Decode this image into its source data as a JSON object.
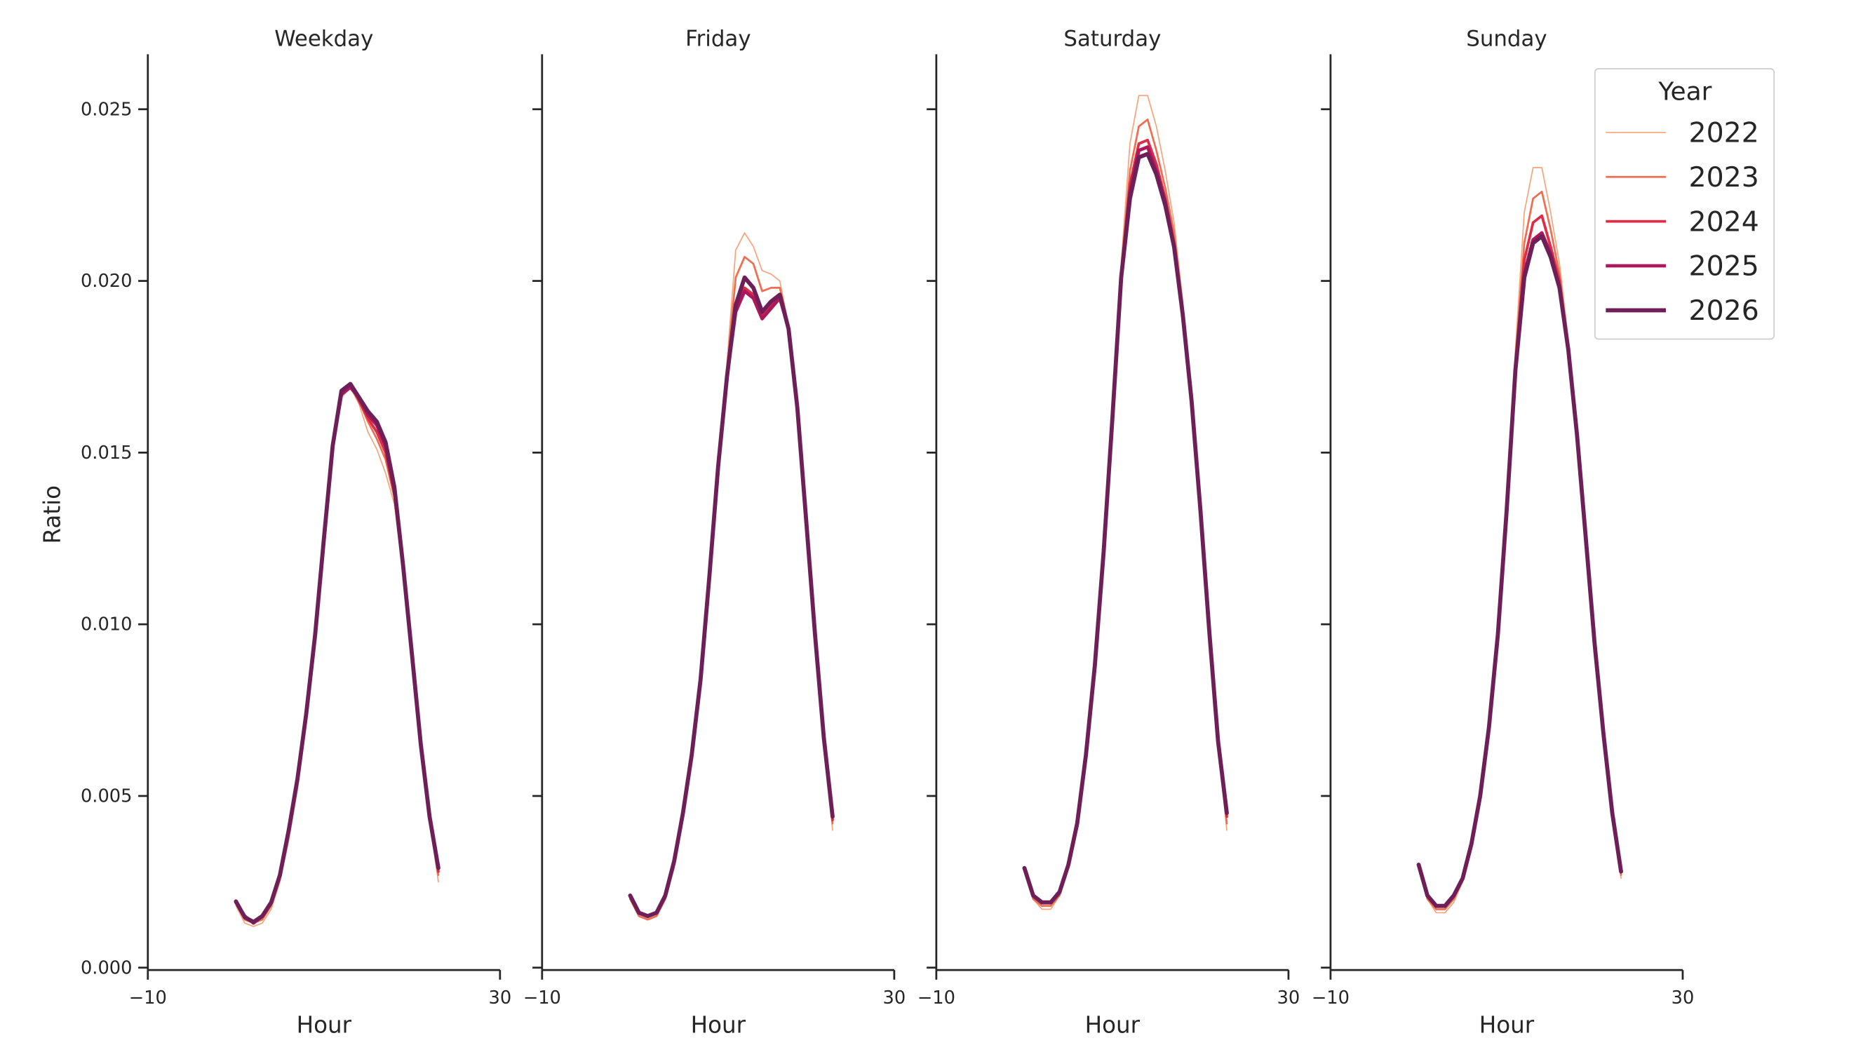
{
  "figure": {
    "ylabel": "Ratio",
    "xlabel": "Hour",
    "legend": {
      "title": "Year",
      "placement": "top-right",
      "entries": [
        "2022",
        "2023",
        "2024",
        "2025",
        "2026"
      ]
    },
    "colors": {
      "2022": "#f6a47c",
      "2023": "#f06e4f",
      "2024": "#dd2c45",
      "2025": "#ae1759",
      "2026": "#6e1f57"
    },
    "line_widths": {
      "2022": 1,
      "2023": 1.6,
      "2024": 2.2,
      "2025": 2.8,
      "2026": 3.4
    }
  },
  "chart_data": [
    {
      "type": "line",
      "title": "Weekday",
      "xlabel": "Hour",
      "ylabel": "Ratio",
      "xlim": [
        -10,
        30
      ],
      "ylim": [
        0,
        0.0266
      ],
      "xticks": [
        "−10",
        "30"
      ],
      "yticks": [
        "0.000",
        "0.005",
        "0.010",
        "0.015",
        "0.020",
        "0.025"
      ],
      "grid": false,
      "x": [
        0,
        1,
        2,
        3,
        4,
        5,
        6,
        7,
        8,
        9,
        10,
        11,
        12,
        13,
        14,
        15,
        16,
        17,
        18,
        19,
        20,
        21,
        22,
        23
      ],
      "series": [
        {
          "name": "2022",
          "values": [
            0.0018,
            0.0013,
            0.0012,
            0.0013,
            0.0017,
            0.0025,
            0.0037,
            0.0052,
            0.0071,
            0.0095,
            0.0123,
            0.015,
            0.0166,
            0.0169,
            0.0164,
            0.0156,
            0.0151,
            0.0144,
            0.0135,
            0.0115,
            0.009,
            0.0064,
            0.0043,
            0.0025
          ]
        },
        {
          "name": "2023",
          "values": [
            0.0019,
            0.0014,
            0.0013,
            0.0014,
            0.0018,
            0.0026,
            0.0039,
            0.0054,
            0.0073,
            0.0096,
            0.0124,
            0.0151,
            0.0167,
            0.0169,
            0.0165,
            0.0159,
            0.0154,
            0.0148,
            0.0137,
            0.0116,
            0.0091,
            0.0065,
            0.0044,
            0.0027
          ]
        },
        {
          "name": "2024",
          "values": [
            0.0019,
            0.0015,
            0.0013,
            0.0015,
            0.0019,
            0.0027,
            0.004,
            0.0055,
            0.0074,
            0.0097,
            0.0125,
            0.0152,
            0.0168,
            0.017,
            0.0165,
            0.016,
            0.0156,
            0.015,
            0.0138,
            0.0117,
            0.0091,
            0.0065,
            0.0044,
            0.0028
          ]
        },
        {
          "name": "2025",
          "values": [
            0.0019,
            0.0015,
            0.0013,
            0.0015,
            0.0019,
            0.0027,
            0.004,
            0.0055,
            0.0074,
            0.0097,
            0.0125,
            0.0152,
            0.0167,
            0.0169,
            0.0166,
            0.0161,
            0.0158,
            0.0152,
            0.0139,
            0.0117,
            0.0091,
            0.0065,
            0.0044,
            0.0029
          ]
        },
        {
          "name": "2026",
          "values": [
            0.00193,
            0.00147,
            0.00133,
            0.0015,
            0.0019,
            0.0027,
            0.004,
            0.0055,
            0.0074,
            0.0097,
            0.0125,
            0.0152,
            0.0168,
            0.017,
            0.0166,
            0.0162,
            0.0159,
            0.0153,
            0.014,
            0.0117,
            0.0091,
            0.0065,
            0.0044,
            0.0029
          ]
        }
      ]
    },
    {
      "type": "line",
      "title": "Friday",
      "xlabel": "Hour",
      "xlim": [
        -10,
        30
      ],
      "ylim": [
        0,
        0.0266
      ],
      "xticks": [
        "−10",
        "30"
      ],
      "grid": false,
      "x": [
        0,
        1,
        2,
        3,
        4,
        5,
        6,
        7,
        8,
        9,
        10,
        11,
        12,
        13,
        14,
        15,
        16,
        17,
        18,
        19,
        20,
        21,
        22,
        23
      ],
      "series": [
        {
          "name": "2022",
          "values": [
            0.002,
            0.0015,
            0.0014,
            0.0015,
            0.002,
            0.0029,
            0.0043,
            0.006,
            0.0083,
            0.0114,
            0.0148,
            0.0176,
            0.0209,
            0.0214,
            0.021,
            0.0203,
            0.0202,
            0.02,
            0.0187,
            0.0163,
            0.013,
            0.0097,
            0.0066,
            0.004
          ]
        },
        {
          "name": "2023",
          "values": [
            0.002,
            0.0015,
            0.0014,
            0.0015,
            0.002,
            0.003,
            0.0044,
            0.0061,
            0.0084,
            0.0114,
            0.0147,
            0.0174,
            0.0201,
            0.0207,
            0.0205,
            0.0197,
            0.0198,
            0.0198,
            0.0187,
            0.0163,
            0.013,
            0.0097,
            0.0066,
            0.0042
          ]
        },
        {
          "name": "2024",
          "values": [
            0.0021,
            0.0016,
            0.0015,
            0.0016,
            0.0021,
            0.0031,
            0.0045,
            0.0062,
            0.0084,
            0.0114,
            0.0146,
            0.0172,
            0.0192,
            0.0198,
            0.0196,
            0.019,
            0.0193,
            0.0196,
            0.0186,
            0.0163,
            0.013,
            0.0097,
            0.0067,
            0.0043
          ]
        },
        {
          "name": "2025",
          "values": [
            0.0021,
            0.0016,
            0.0015,
            0.0016,
            0.0021,
            0.0031,
            0.0045,
            0.0062,
            0.0084,
            0.0114,
            0.0146,
            0.0172,
            0.0191,
            0.0197,
            0.0195,
            0.0189,
            0.0192,
            0.0195,
            0.0186,
            0.0163,
            0.013,
            0.0097,
            0.0067,
            0.0044
          ]
        },
        {
          "name": "2026",
          "values": [
            0.0021,
            0.0016,
            0.0015,
            0.0016,
            0.0021,
            0.0031,
            0.0045,
            0.0062,
            0.0084,
            0.0114,
            0.0146,
            0.0172,
            0.0193,
            0.0201,
            0.0198,
            0.0191,
            0.0194,
            0.0196,
            0.0186,
            0.0163,
            0.013,
            0.0097,
            0.0067,
            0.0044
          ]
        }
      ]
    },
    {
      "type": "line",
      "title": "Saturday",
      "xlabel": "Hour",
      "xlim": [
        -10,
        30
      ],
      "ylim": [
        0,
        0.0266
      ],
      "xticks": [
        "−10",
        "30"
      ],
      "grid": false,
      "x": [
        0,
        1,
        2,
        3,
        4,
        5,
        6,
        7,
        8,
        9,
        10,
        11,
        12,
        13,
        14,
        15,
        16,
        17,
        18,
        19,
        20,
        21,
        22,
        23
      ],
      "series": [
        {
          "name": "2022",
          "values": [
            0.0028,
            0.002,
            0.0017,
            0.0017,
            0.0021,
            0.0029,
            0.0041,
            0.0061,
            0.0088,
            0.0121,
            0.0162,
            0.0205,
            0.024,
            0.0254,
            0.0254,
            0.0245,
            0.0232,
            0.0217,
            0.0194,
            0.0166,
            0.0132,
            0.0097,
            0.0065,
            0.004
          ]
        },
        {
          "name": "2023",
          "values": [
            0.0028,
            0.002,
            0.0018,
            0.0018,
            0.0021,
            0.0029,
            0.0041,
            0.0061,
            0.0088,
            0.0121,
            0.0161,
            0.0203,
            0.0232,
            0.0245,
            0.0247,
            0.0238,
            0.0227,
            0.0214,
            0.0192,
            0.0166,
            0.0133,
            0.0098,
            0.0066,
            0.0042
          ]
        },
        {
          "name": "2024",
          "values": [
            0.0029,
            0.0021,
            0.0019,
            0.0019,
            0.0022,
            0.003,
            0.0042,
            0.0062,
            0.0088,
            0.0121,
            0.016,
            0.0202,
            0.0228,
            0.024,
            0.0241,
            0.0234,
            0.0224,
            0.0211,
            0.0191,
            0.0165,
            0.0133,
            0.0098,
            0.0066,
            0.0044
          ]
        },
        {
          "name": "2025",
          "values": [
            0.0029,
            0.0021,
            0.0019,
            0.0019,
            0.0022,
            0.003,
            0.0042,
            0.0062,
            0.0088,
            0.0121,
            0.016,
            0.0201,
            0.0226,
            0.0238,
            0.0239,
            0.0232,
            0.0223,
            0.021,
            0.019,
            0.0165,
            0.0133,
            0.0098,
            0.0066,
            0.0045
          ]
        },
        {
          "name": "2026",
          "values": [
            0.0029,
            0.0021,
            0.0019,
            0.0019,
            0.0022,
            0.003,
            0.0042,
            0.0062,
            0.0088,
            0.0121,
            0.016,
            0.0201,
            0.0224,
            0.0236,
            0.0237,
            0.0231,
            0.0222,
            0.021,
            0.019,
            0.0165,
            0.0133,
            0.0098,
            0.0066,
            0.0045
          ]
        }
      ]
    },
    {
      "type": "line",
      "title": "Sunday",
      "xlabel": "Hour",
      "xlim": [
        -10,
        30
      ],
      "ylim": [
        0,
        0.0266
      ],
      "xticks": [
        "−10",
        "30"
      ],
      "grid": false,
      "x": [
        0,
        1,
        2,
        3,
        4,
        5,
        6,
        7,
        8,
        9,
        10,
        11,
        12,
        13,
        14,
        15,
        16,
        17,
        18,
        19,
        20,
        21,
        22,
        23
      ],
      "series": [
        {
          "name": "2022",
          "values": [
            0.0029,
            0.002,
            0.0016,
            0.0016,
            0.0019,
            0.0025,
            0.0035,
            0.0049,
            0.007,
            0.0097,
            0.0135,
            0.018,
            0.022,
            0.0233,
            0.0233,
            0.022,
            0.0205,
            0.0183,
            0.0156,
            0.0125,
            0.0094,
            0.0067,
            0.0044,
            0.0026
          ]
        },
        {
          "name": "2023",
          "values": [
            0.0029,
            0.002,
            0.0017,
            0.0017,
            0.002,
            0.0026,
            0.0036,
            0.005,
            0.007,
            0.0097,
            0.0134,
            0.0177,
            0.0211,
            0.0224,
            0.0226,
            0.0215,
            0.0202,
            0.0181,
            0.0155,
            0.0125,
            0.0094,
            0.0068,
            0.0045,
            0.0027
          ]
        },
        {
          "name": "2024",
          "values": [
            0.003,
            0.0021,
            0.0018,
            0.0018,
            0.0021,
            0.0026,
            0.0036,
            0.005,
            0.007,
            0.0097,
            0.0133,
            0.0175,
            0.0206,
            0.0217,
            0.0219,
            0.021,
            0.02,
            0.018,
            0.0155,
            0.0125,
            0.0094,
            0.0068,
            0.0045,
            0.0028
          ]
        },
        {
          "name": "2025",
          "values": [
            0.003,
            0.0021,
            0.0018,
            0.0018,
            0.0021,
            0.0026,
            0.0036,
            0.005,
            0.007,
            0.0097,
            0.0133,
            0.0174,
            0.0202,
            0.0212,
            0.0214,
            0.0208,
            0.0198,
            0.018,
            0.0155,
            0.0125,
            0.0094,
            0.0068,
            0.0045,
            0.0028
          ]
        },
        {
          "name": "2026",
          "values": [
            0.003,
            0.0021,
            0.0018,
            0.0018,
            0.0021,
            0.0026,
            0.0036,
            0.005,
            0.007,
            0.0097,
            0.0133,
            0.0174,
            0.0201,
            0.0211,
            0.0213,
            0.0207,
            0.0198,
            0.018,
            0.0155,
            0.0125,
            0.0094,
            0.0068,
            0.0045,
            0.0028
          ]
        }
      ]
    }
  ]
}
